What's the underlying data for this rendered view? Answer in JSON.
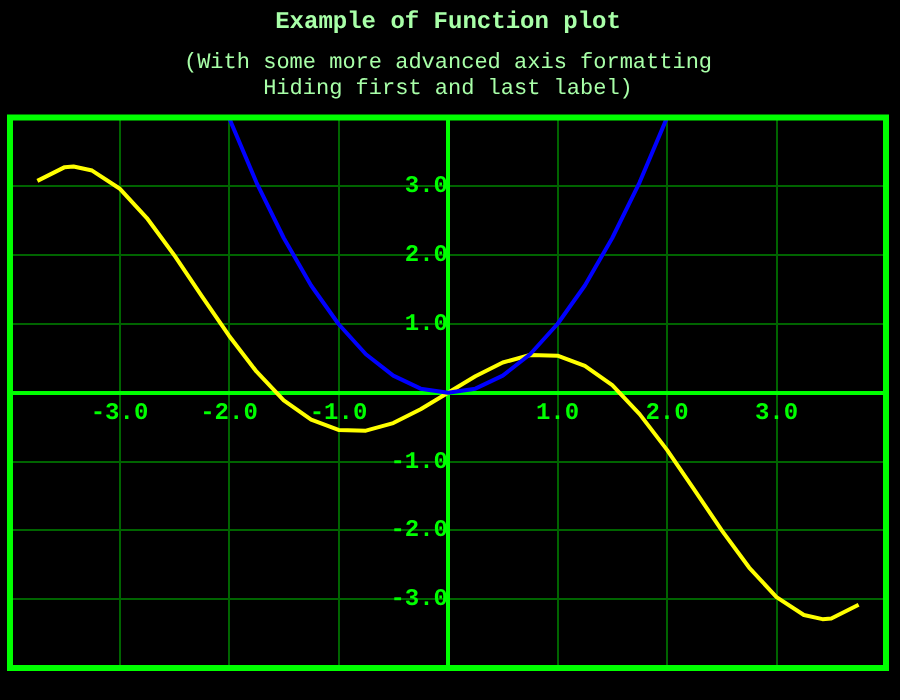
{
  "chart_data": {
    "type": "line",
    "title": "Example of Function plot",
    "subtitle": "(With some more advanced axis formatting\nHiding first and last label)",
    "xlim": [
      -4,
      4
    ],
    "ylim": [
      -4,
      4
    ],
    "xticks": [
      {
        "value": -4,
        "label": null
      },
      {
        "value": -3,
        "label": "-3.0"
      },
      {
        "value": -2,
        "label": "-2.0"
      },
      {
        "value": -1,
        "label": "-1.0"
      },
      {
        "value": 0,
        "label": null
      },
      {
        "value": 1,
        "label": "1.0"
      },
      {
        "value": 2,
        "label": "2.0"
      },
      {
        "value": 3,
        "label": "3.0"
      },
      {
        "value": 4,
        "label": null
      }
    ],
    "yticks": [
      {
        "value": -4,
        "label": null
      },
      {
        "value": -3,
        "label": "-3.0"
      },
      {
        "value": -2,
        "label": "-2.0"
      },
      {
        "value": -1,
        "label": "-1.0"
      },
      {
        "value": 0,
        "label": null
      },
      {
        "value": 1,
        "label": "1.0"
      },
      {
        "value": 2,
        "label": "2.0"
      },
      {
        "value": 3,
        "label": "3.0"
      },
      {
        "value": 4,
        "label": null
      }
    ],
    "grid": true,
    "legend": false,
    "marker": "none",
    "line_style": "solid",
    "series": [
      {
        "color": "#0000ff",
        "x": [
          -2,
          -1.75,
          -1.5,
          -1.25,
          -1,
          -0.75,
          -0.5,
          -0.25,
          0,
          0.25,
          0.5,
          0.75,
          1,
          1.25,
          1.5,
          1.75,
          2
        ],
        "values": [
          4,
          3.06,
          2.25,
          1.56,
          1,
          0.56,
          0.25,
          0.06,
          0,
          0.06,
          0.25,
          0.56,
          1,
          1.56,
          2.25,
          3.06,
          4
        ]
      },
      {
        "color": "#ffff00",
        "x": [
          -3.75,
          -3.5,
          -3.42,
          -3.25,
          -3,
          -2.75,
          -2.5,
          -2.25,
          -2,
          -1.75,
          -1.5,
          -1.25,
          -1,
          -0.75,
          -0.5,
          -0.25,
          0,
          0.25,
          0.5,
          0.75,
          1,
          1.25,
          1.5,
          1.75,
          2,
          2.25,
          2.5,
          2.75,
          3,
          3.25,
          3.42,
          3.5,
          3.75
        ],
        "values": [
          3.08,
          3.28,
          3.29,
          3.23,
          2.97,
          2.54,
          2.0,
          1.41,
          0.83,
          0.31,
          -0.11,
          -0.39,
          -0.54,
          -0.55,
          -0.44,
          -0.24,
          0,
          0.24,
          0.44,
          0.55,
          0.54,
          0.39,
          0.11,
          -0.31,
          -0.83,
          -1.41,
          -2.0,
          -2.54,
          -2.97,
          -3.23,
          -3.29,
          -3.28,
          -3.08
        ]
      }
    ]
  }
}
